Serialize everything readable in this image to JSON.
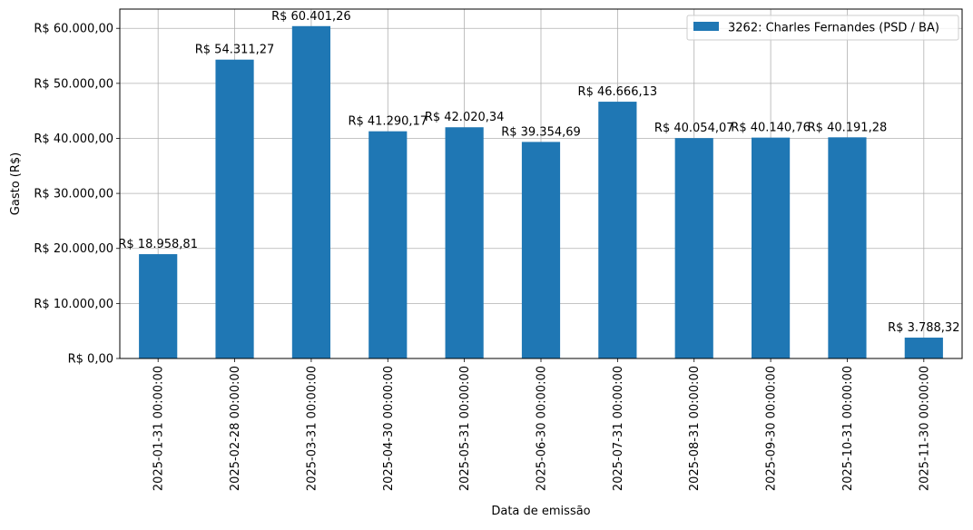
{
  "chart_data": {
    "type": "bar",
    "title": "",
    "xlabel": "Data de emissão",
    "ylabel": "Gasto (R$)",
    "ylim": [
      0,
      63500
    ],
    "yticks": [
      0,
      10000,
      20000,
      30000,
      40000,
      50000,
      60000
    ],
    "ytick_labels": [
      "R$ 0,00",
      "R$ 10.000,00",
      "R$ 20.000,00",
      "R$ 30.000,00",
      "R$ 40.000,00",
      "R$ 50.000,00",
      "R$ 60.000,00"
    ],
    "grid": true,
    "legend_position": "top-right",
    "bar_color": "#1f77b4",
    "categories": [
      "2025-01-31 00:00:00",
      "2025-02-28 00:00:00",
      "2025-03-31 00:00:00",
      "2025-04-30 00:00:00",
      "2025-05-31 00:00:00",
      "2025-06-30 00:00:00",
      "2025-07-31 00:00:00",
      "2025-08-31 00:00:00",
      "2025-09-30 00:00:00",
      "2025-10-31 00:00:00",
      "2025-11-30 00:00:00"
    ],
    "series": [
      {
        "name": "3262: Charles Fernandes (PSD / BA)",
        "values": [
          18958.81,
          54311.27,
          60401.26,
          41290.17,
          42020.34,
          39354.69,
          46666.13,
          40054.07,
          40140.76,
          40191.28,
          3788.32
        ],
        "data_labels": [
          "R$ 18.958,81",
          "R$ 54.311,27",
          "R$ 60.401,26",
          "R$ 41.290,17",
          "R$ 42.020,34",
          "R$ 39.354,69",
          "R$ 46.666,13",
          "R$ 40.054,07",
          "R$ 40.140,76",
          "R$ 40.191,28",
          "R$ 3.788,32"
        ]
      }
    ]
  }
}
